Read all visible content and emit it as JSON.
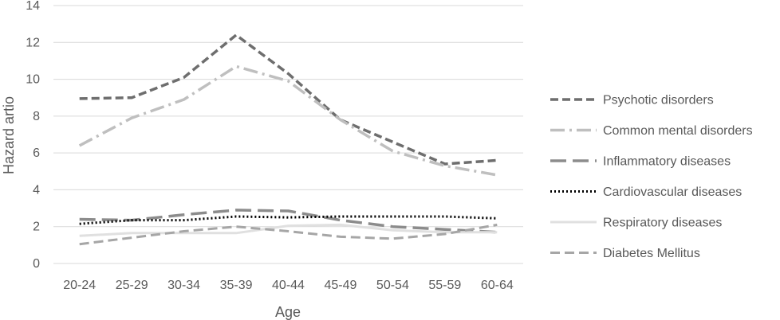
{
  "chart_data": {
    "type": "line",
    "title": "",
    "xlabel": "Age",
    "ylabel": "Hazard artio",
    "ylim": [
      0,
      14
    ],
    "y_ticks": [
      0,
      2,
      4,
      6,
      8,
      10,
      12,
      14
    ],
    "categories": [
      "20-24",
      "25-29",
      "30-34",
      "35-39",
      "40-44",
      "45-49",
      "50-54",
      "55-59",
      "60-64"
    ],
    "grid": "horizontal",
    "legend_position": "right",
    "series": [
      {
        "name": "Psychotic disorders",
        "values": [
          8.95,
          9.0,
          10.1,
          12.4,
          10.3,
          7.8,
          6.6,
          5.4,
          5.6
        ],
        "color": "#6e6e6e",
        "dash": "10,5",
        "stroke_width": 3.5
      },
      {
        "name": "Common mental disorders",
        "values": [
          6.4,
          7.9,
          8.9,
          10.7,
          9.9,
          7.8,
          6.1,
          5.3,
          4.8
        ],
        "color": "#bfbfbf",
        "dash": "18,6,3,6",
        "stroke_width": 3.5
      },
      {
        "name": "Inflammatory diseases",
        "values": [
          2.4,
          2.35,
          2.65,
          2.9,
          2.85,
          2.35,
          2.0,
          1.85,
          1.7
        ],
        "color": "#8c8c8c",
        "dash": "20,8",
        "stroke_width": 3.5
      },
      {
        "name": "Cardiovascular diseases",
        "values": [
          2.15,
          2.35,
          2.35,
          2.55,
          2.5,
          2.55,
          2.55,
          2.55,
          2.45
        ],
        "color": "#000000",
        "dash": "2,3",
        "stroke_width": 3
      },
      {
        "name": "Respiratory diseases",
        "values": [
          1.5,
          1.65,
          1.65,
          1.65,
          2.05,
          2.1,
          1.8,
          1.7,
          1.7
        ],
        "color": "#e0e0e0",
        "dash": "",
        "stroke_width": 3
      },
      {
        "name": "Diabetes Mellitus",
        "values": [
          1.05,
          1.4,
          1.75,
          2.0,
          1.75,
          1.45,
          1.35,
          1.6,
          2.1
        ],
        "color": "#a6a6a6",
        "dash": "12,6",
        "stroke_width": 3
      }
    ]
  }
}
